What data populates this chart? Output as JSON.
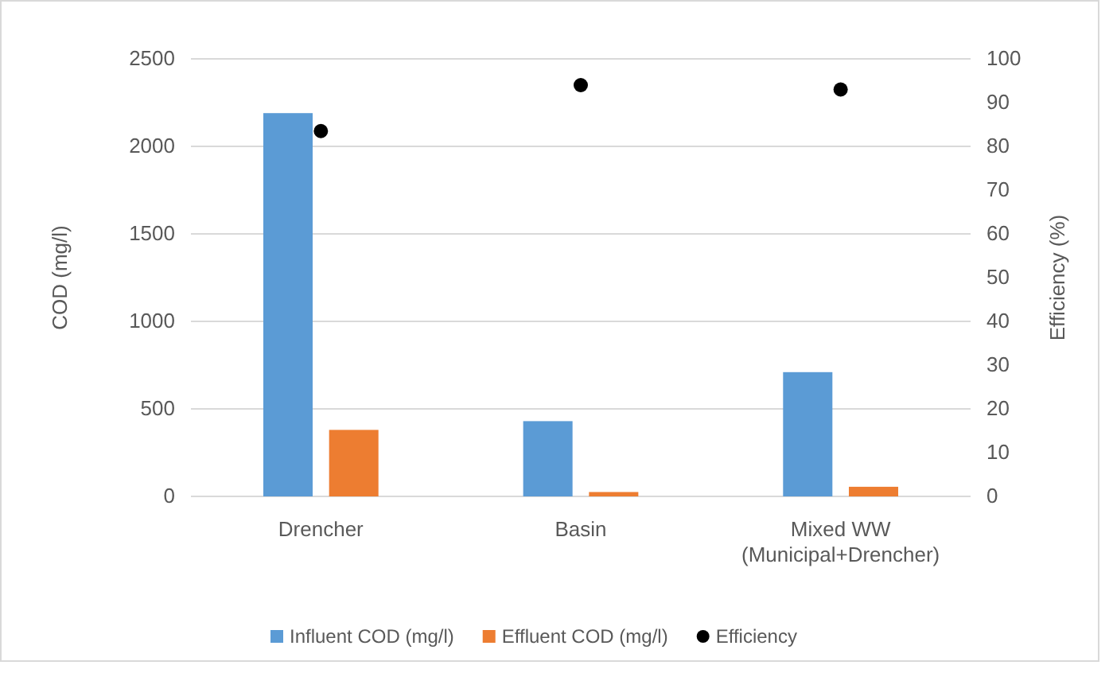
{
  "chart_data": {
    "type": "bar",
    "categories": [
      "Drencher",
      "Basin",
      "Mixed WW\n(Municipal+Drencher)"
    ],
    "series": [
      {
        "name": "Influent COD (mg/l)",
        "color": "#5b9bd5",
        "values": [
          2190,
          430,
          710
        ]
      },
      {
        "name": "Effluent COD (mg/l)",
        "color": "#ed7d31",
        "values": [
          380,
          25,
          55
        ]
      },
      {
        "name": "Efficiency",
        "type": "scatter",
        "axis": "y2",
        "color": "#000000",
        "values": [
          83.5,
          94,
          93
        ]
      }
    ],
    "ylabel": "COD (mg/l)",
    "y2label": "Efficiency (%)",
    "ylim": [
      0,
      2500
    ],
    "yticks": [
      0,
      500,
      1000,
      1500,
      2000,
      2500
    ],
    "y2lim": [
      0,
      100
    ],
    "y2ticks": [
      0,
      10,
      20,
      30,
      40,
      50,
      60,
      70,
      80,
      90,
      100
    ],
    "grid": "y",
    "legend": "bottom",
    "marker": "circle"
  }
}
